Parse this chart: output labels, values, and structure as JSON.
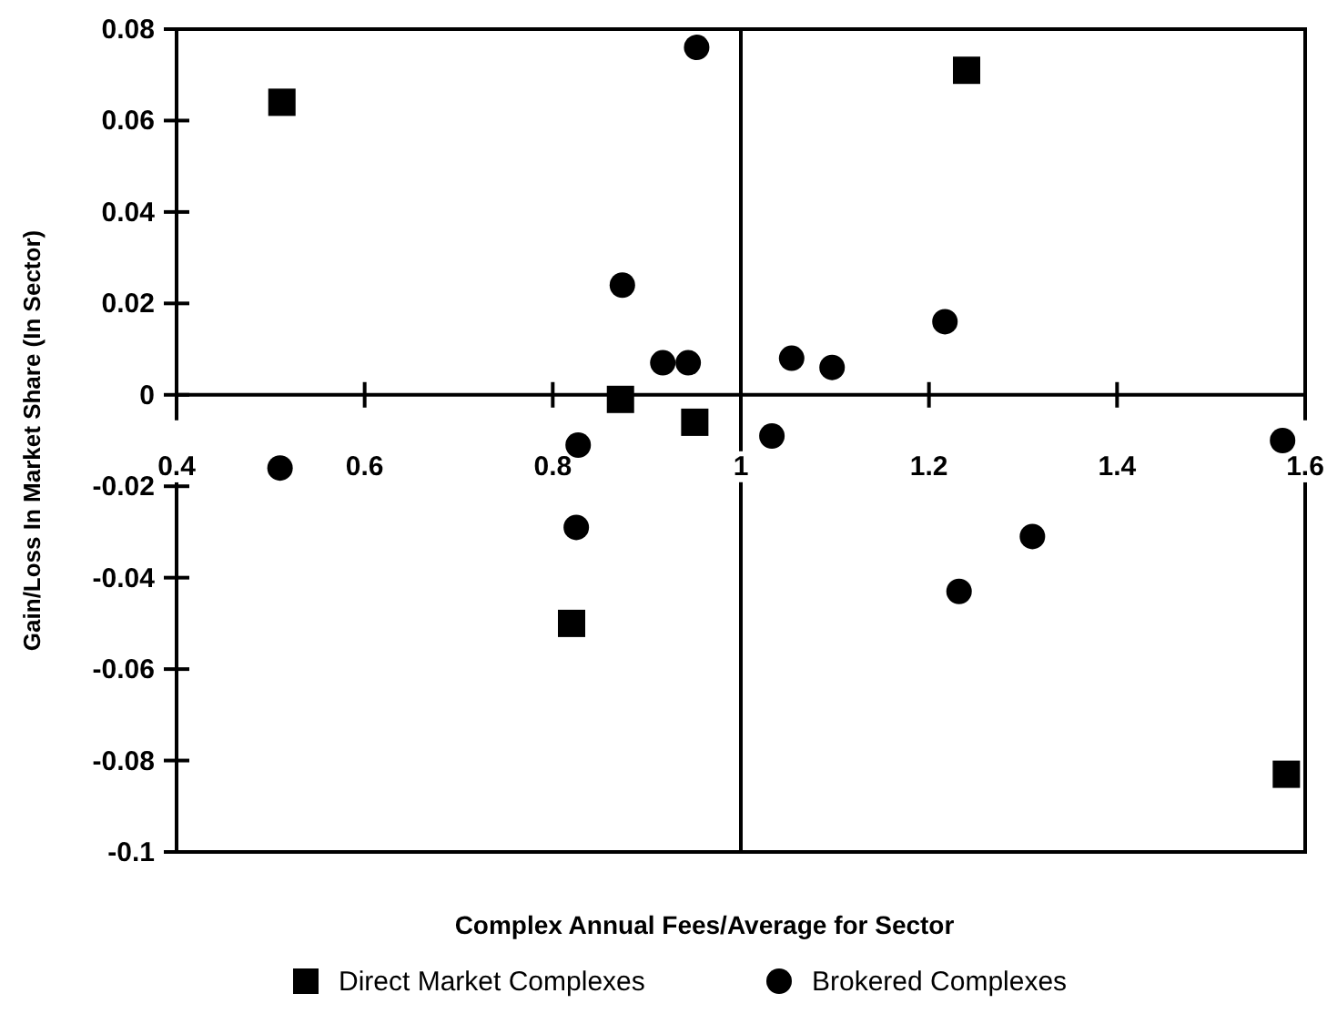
{
  "chart_data": {
    "type": "scatter",
    "xlabel": "Complex Annual Fees/Average for Sector",
    "ylabel": "Gain/Loss In Market Share (In Sector)",
    "xlim": [
      0.4,
      1.6
    ],
    "xticks": [
      0.4,
      0.6,
      0.8,
      1,
      1.2,
      1.4,
      1.6
    ],
    "ylim": [
      -0.1,
      0.08
    ],
    "yticks": [
      -0.1,
      -0.08,
      -0.06,
      -0.04,
      -0.02,
      0,
      0.02,
      0.04,
      0.06,
      0.08
    ],
    "grid": false,
    "legend": "bottom",
    "ref_lines": [
      {
        "axis": "x",
        "value": 1,
        "color": "#000000"
      }
    ],
    "series": [
      {
        "name": "Direct Market Complexes",
        "color": "#000000",
        "marker": "square",
        "x": [
          0.512,
          1.24,
          0.872,
          0.951,
          0.82,
          1.58
        ],
        "values": [
          0.064,
          0.071,
          -0.001,
          -0.006,
          -0.05,
          -0.083
        ]
      },
      {
        "name": "Brokered Complexes",
        "color": "#000000",
        "marker": "circle",
        "x": [
          0.953,
          0.874,
          0.917,
          0.944,
          1.054,
          1.097,
          1.217,
          1.033,
          0.51,
          0.827,
          0.825,
          1.31,
          1.232,
          1.576
        ],
        "values": [
          0.076,
          0.024,
          0.007,
          0.007,
          0.008,
          0.006,
          0.016,
          -0.009,
          -0.016,
          -0.011,
          -0.029,
          -0.031,
          -0.043,
          -0.01
        ]
      }
    ]
  }
}
